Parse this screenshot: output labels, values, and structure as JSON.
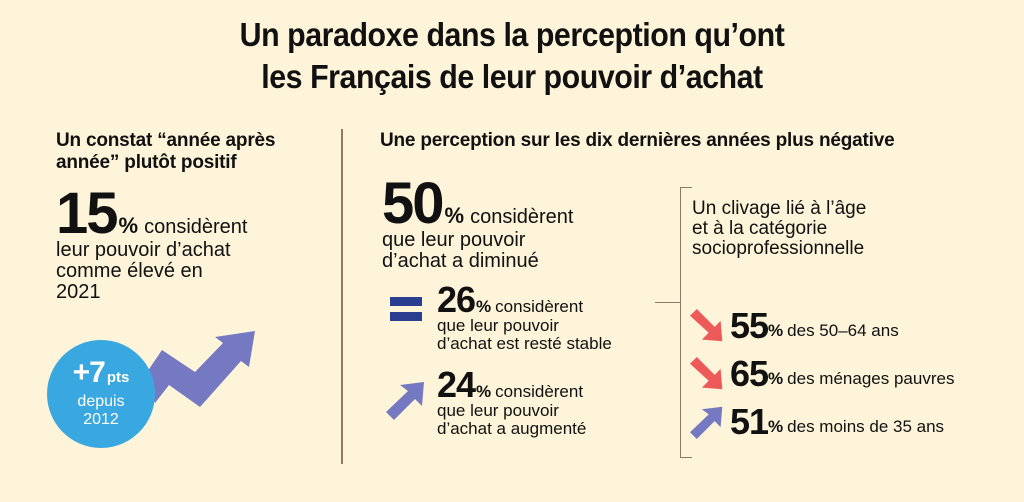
{
  "title": {
    "line1": "Un paradoxe dans la perception qu’ont",
    "line2": "les Français de leur pouvoir d’achat"
  },
  "left": {
    "heading_line1": "Un constat “année après",
    "heading_line2": "année” plutôt positif",
    "stat": {
      "value": "15",
      "unit": "%",
      "text_line1": "considèrent",
      "text_line2": "leur pouvoir d’achat",
      "text_line3": "comme élevé en",
      "text_line4": "2021"
    },
    "badge": {
      "value": "+7",
      "unit": "pts",
      "line1": "depuis",
      "line2": "2012"
    }
  },
  "right": {
    "heading": "Une perception sur les dix dernières années plus négative",
    "main_stat": {
      "value": "50",
      "unit": "%",
      "text_line1": "considèrent",
      "text_line2": "que leur pouvoir",
      "text_line3": "d’achat a diminué"
    },
    "stable_stat": {
      "icon": "equals-icon",
      "value": "26",
      "unit": "%",
      "text_line1": "considèrent",
      "text_line2": "que leur pouvoir",
      "text_line3": "d’achat est resté stable"
    },
    "increase_stat": {
      "icon": "arrow-up-right-icon",
      "value": "24",
      "unit": "%",
      "text_line1": "considèrent",
      "text_line2": "que leur pouvoir",
      "text_line3": "d’achat a augmenté"
    },
    "clivage": {
      "line1": "Un clivage lié à l’âge",
      "line2": "et à la catégorie",
      "line3": "socioprofessionnelle",
      "items": [
        {
          "icon": "arrow-down-right-icon",
          "value": "55",
          "unit": "%",
          "label": "des 50–64 ans",
          "color": "#ee5a5a"
        },
        {
          "icon": "arrow-down-right-icon",
          "value": "65",
          "unit": "%",
          "label": "des ménages pauvres",
          "color": "#ee5a5a"
        },
        {
          "icon": "arrow-up-right-icon",
          "value": "51",
          "unit": "%",
          "label": "des moins de 35 ans",
          "color": "#7579c2"
        }
      ]
    }
  },
  "colors": {
    "background": "#fdf4d9",
    "badge_blue": "#3aa8e0",
    "purple": "#7579c2",
    "navy": "#2b3d8f",
    "red": "#ee5a5a",
    "divider": "#8a7a66"
  }
}
